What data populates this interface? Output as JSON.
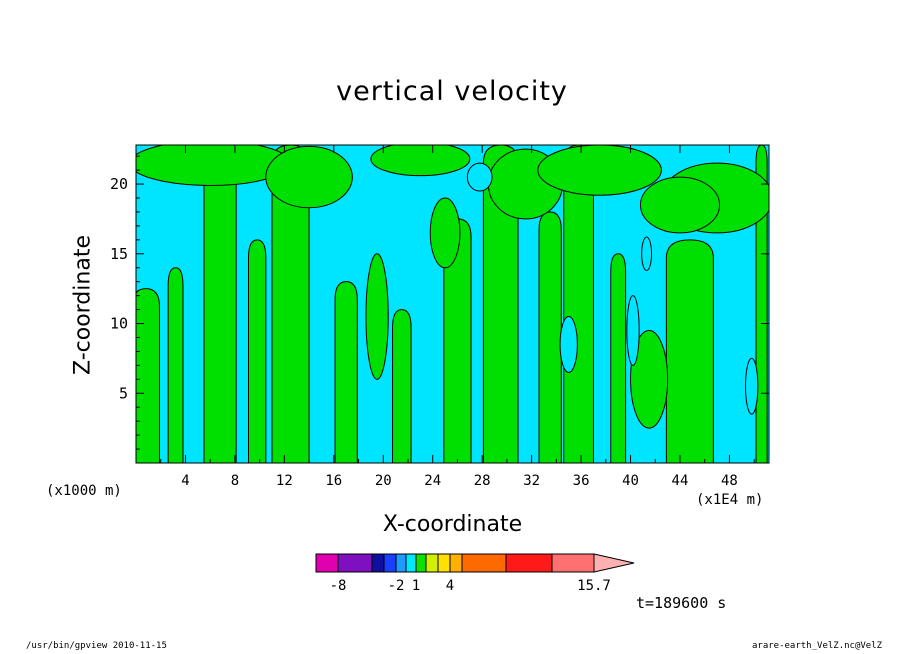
{
  "chart_data": {
    "type": "heatmap",
    "title": "vertical velocity",
    "xlabel": "X-coordinate",
    "ylabel": "Z-coordinate",
    "x_unit_label": "(x1000 m)",
    "x_scale_label": "(x1E4 m)",
    "xlim": [
      0,
      51.2
    ],
    "ylim": [
      0,
      22.8
    ],
    "x_ticks": [
      "4",
      "8",
      "12",
      "16",
      "20",
      "24",
      "28",
      "32",
      "36",
      "40",
      "44",
      "48"
    ],
    "y_ticks": [
      "5",
      "10",
      "15",
      "20"
    ],
    "colorbar": {
      "tick_labels": [
        "-8",
        "-2",
        "1",
        "4",
        "15.7"
      ],
      "colors": [
        "#e000b0",
        "#7f10c0",
        "#1010a0",
        "#1a3fff",
        "#1e9bff",
        "#00e8ff",
        "#10e000",
        "#d0f000",
        "#ffe000",
        "#ffb000",
        "#ff6a00",
        "#ff1a1a",
        "#ff7070",
        "#ffb0b0"
      ]
    },
    "colors": {
      "positive": "#00e5ff",
      "negative": "#00e000",
      "contour": "#000000"
    },
    "time_label": "t=189600 s",
    "green_columns": [
      {
        "x": 0.8,
        "w": 2.2,
        "top": 12.5
      },
      {
        "x": 3.2,
        "w": 1.2,
        "top": 14.0
      },
      {
        "x": 6.8,
        "w": 2.6,
        "top": 22.8
      },
      {
        "x": 9.8,
        "w": 1.4,
        "top": 16.0
      },
      {
        "x": 12.5,
        "w": 3.0,
        "top": 22.8
      },
      {
        "x": 17.0,
        "w": 1.8,
        "top": 13.0
      },
      {
        "x": 21.5,
        "w": 1.5,
        "top": 11.0
      },
      {
        "x": 26.0,
        "w": 2.2,
        "top": 17.5
      },
      {
        "x": 29.5,
        "w": 2.8,
        "top": 22.8
      },
      {
        "x": 33.5,
        "w": 1.8,
        "top": 18.0
      },
      {
        "x": 35.8,
        "w": 2.4,
        "top": 22.8
      },
      {
        "x": 39.0,
        "w": 1.2,
        "top": 15.0
      },
      {
        "x": 44.8,
        "w": 3.8,
        "top": 16.0
      },
      {
        "x": 50.6,
        "w": 0.9,
        "top": 22.8
      }
    ],
    "green_blobs": [
      {
        "x": 6.0,
        "y": 21.5,
        "rx": 6.5,
        "ry": 1.6
      },
      {
        "x": 14.0,
        "y": 20.5,
        "rx": 3.5,
        "ry": 2.2
      },
      {
        "x": 23.0,
        "y": 21.8,
        "rx": 4.0,
        "ry": 1.2
      },
      {
        "x": 25.0,
        "y": 16.5,
        "rx": 1.2,
        "ry": 2.5
      },
      {
        "x": 31.5,
        "y": 20.0,
        "rx": 3.0,
        "ry": 2.5
      },
      {
        "x": 37.5,
        "y": 21.0,
        "rx": 5.0,
        "ry": 1.8
      },
      {
        "x": 47.0,
        "y": 19.0,
        "rx": 4.5,
        "ry": 2.5
      },
      {
        "x": 19.5,
        "y": 10.5,
        "rx": 0.9,
        "ry": 4.5
      },
      {
        "x": 41.5,
        "y": 6.0,
        "rx": 1.5,
        "ry": 3.5
      },
      {
        "x": 44.0,
        "y": 18.5,
        "rx": 3.2,
        "ry": 2.0
      }
    ],
    "cyan_holes": [
      {
        "x": 35.0,
        "y": 8.5,
        "rx": 0.7,
        "ry": 2.0
      },
      {
        "x": 40.2,
        "y": 9.5,
        "rx": 0.5,
        "ry": 2.5
      },
      {
        "x": 41.3,
        "y": 15.0,
        "rx": 0.4,
        "ry": 1.2
      },
      {
        "x": 49.8,
        "y": 5.5,
        "rx": 0.5,
        "ry": 2.0
      },
      {
        "x": 27.8,
        "y": 20.5,
        "rx": 1.0,
        "ry": 1.0
      }
    ]
  },
  "footer": {
    "left": "/usr/bin/gpview  2010-11-15",
    "right": "arare-earth_VelZ.nc@VelZ"
  }
}
